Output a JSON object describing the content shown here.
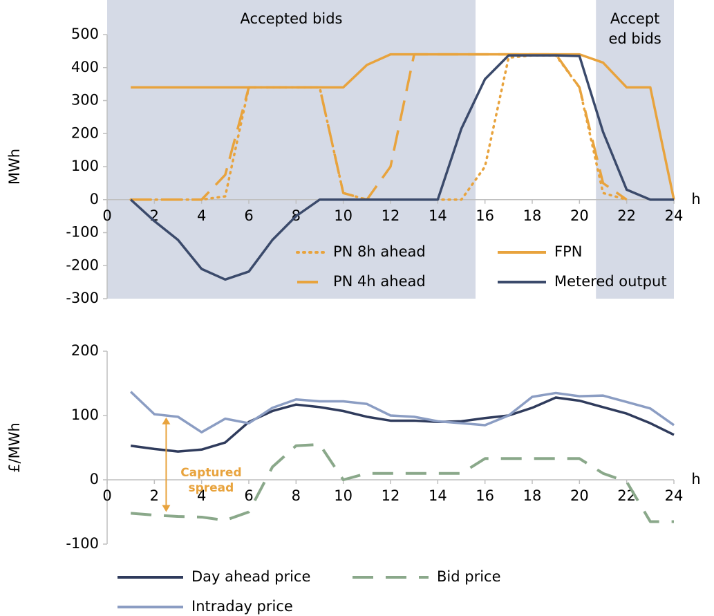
{
  "chart_data": [
    {
      "type": "line",
      "y_label": "MWh",
      "x_label": "h",
      "xlim": [
        0,
        24
      ],
      "xticks": [
        0,
        2,
        4,
        6,
        8,
        10,
        12,
        14,
        16,
        18,
        20,
        22,
        24
      ],
      "ylim": [
        -300,
        500
      ],
      "yticks": [
        -300,
        -200,
        -100,
        0,
        100,
        200,
        300,
        400,
        500
      ],
      "legend": "lower right",
      "regions": [
        {
          "x": [
            0,
            15.6
          ],
          "color": "#d5dae6",
          "label": [
            "Accepted bids"
          ]
        },
        {
          "x": [
            20.7,
            24
          ],
          "color": "#d5dae6",
          "label": [
            "Accept",
            "ed bids"
          ]
        }
      ],
      "x": [
        1,
        2,
        3,
        4,
        5,
        6,
        7,
        8,
        9,
        10,
        11,
        12,
        13,
        14,
        15,
        16,
        17,
        18,
        19,
        20,
        21,
        22,
        23,
        24
      ],
      "series": [
        {
          "name": "PN 8h ahead",
          "color": "#e8a33d",
          "style": "dotted",
          "values": [
            0,
            0,
            0,
            0,
            10,
            340,
            340,
            340,
            340,
            20,
            0,
            0,
            0,
            0,
            0,
            100,
            430,
            437,
            437,
            340,
            20,
            0,
            null,
            null
          ]
        },
        {
          "name": "PN 4h ahead",
          "color": "#e8a33d",
          "style": "dashed",
          "values": [
            0,
            0,
            0,
            0,
            75,
            340,
            340,
            340,
            340,
            20,
            0,
            100,
            440,
            440,
            440,
            440,
            440,
            440,
            440,
            340,
            50,
            0,
            null,
            null
          ]
        },
        {
          "name": "FPN",
          "color": "#e8a33d",
          "style": "solid",
          "values": [
            340,
            340,
            340,
            340,
            340,
            340,
            340,
            340,
            340,
            340,
            408,
            440,
            440,
            440,
            440,
            440,
            440,
            440,
            440,
            440,
            415,
            340,
            340,
            0
          ]
        },
        {
          "name": "Metered output",
          "color": "#3b4a6b",
          "style": "solid",
          "values": [
            0,
            -65,
            -122,
            -210,
            -242,
            -218,
            -122,
            -50,
            0,
            0,
            0,
            0,
            0,
            0,
            215,
            365,
            437,
            437,
            437,
            435,
            205,
            30,
            0,
            0
          ]
        }
      ]
    },
    {
      "type": "line",
      "y_label": "£/MWh",
      "x_label": "h",
      "xlim": [
        0,
        24
      ],
      "xticks": [
        0,
        2,
        4,
        6,
        8,
        10,
        12,
        14,
        16,
        18,
        20,
        22,
        24
      ],
      "ylim": [
        -100,
        200
      ],
      "yticks": [
        -100,
        0,
        100,
        200
      ],
      "legend": "below",
      "annotation": {
        "text": [
          "Captured",
          "spread"
        ],
        "x": 2.5,
        "y_from": -50,
        "y_to": 97,
        "color": "#e8a33d"
      },
      "x": [
        1,
        2,
        3,
        4,
        5,
        6,
        7,
        8,
        9,
        10,
        11,
        12,
        13,
        14,
        15,
        16,
        17,
        18,
        19,
        20,
        21,
        22,
        23,
        24
      ],
      "series": [
        {
          "name": "Day ahead price",
          "color": "#2f3b5c",
          "style": "solid",
          "values": [
            53,
            48,
            44,
            47,
            58,
            90,
            107,
            117,
            113,
            107,
            98,
            92,
            92,
            90,
            91,
            96,
            100,
            112,
            128,
            123,
            113,
            103,
            88,
            70
          ]
        },
        {
          "name": "Intraday price",
          "color": "#8b9dc3",
          "style": "solid",
          "values": [
            137,
            102,
            98,
            74,
            95,
            88,
            112,
            125,
            122,
            122,
            118,
            100,
            98,
            91,
            88,
            85,
            100,
            129,
            135,
            130,
            131,
            121,
            111,
            85
          ]
        },
        {
          "name": "Bid price",
          "color": "#8aa88a",
          "style": "bigdash",
          "values": [
            -52,
            -55,
            -57,
            -58,
            -63,
            -50,
            20,
            53,
            55,
            0,
            10,
            10,
            10,
            10,
            10,
            33,
            33,
            33,
            33,
            33,
            10,
            -3,
            -65,
            -65
          ]
        }
      ]
    }
  ]
}
